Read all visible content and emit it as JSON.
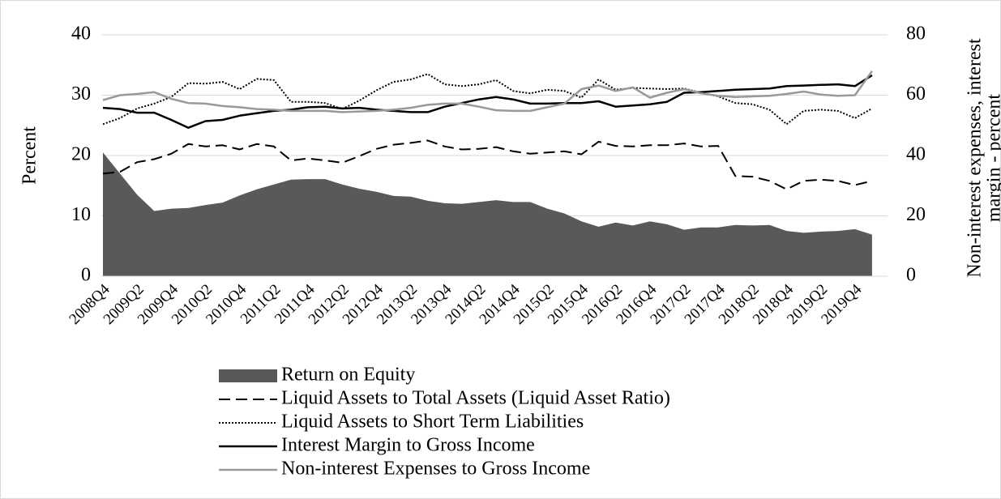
{
  "chart_data": {
    "type": "line",
    "y_label": "Percent",
    "y2_label": [
      "Non-interest expenses, interest",
      "margin - percent"
    ],
    "categories": [
      "2008Q4",
      null,
      "2009Q2",
      null,
      "2009Q4",
      null,
      "2010Q2",
      null,
      "2010Q4",
      null,
      "2011Q2",
      null,
      "2011Q4",
      null,
      "2012Q2",
      null,
      "2012Q4",
      null,
      "2013Q2",
      null,
      "2013Q4",
      null,
      "2014Q2",
      null,
      "2014Q4",
      null,
      "2015Q2",
      null,
      "2015Q4",
      null,
      "2016Q2",
      null,
      "2016Q4",
      null,
      "2017Q2",
      null,
      "2017Q4",
      null,
      "2018Q2",
      null,
      "2018Q4",
      null,
      "2019Q2",
      null,
      "2019Q4",
      null
    ],
    "ylim": [
      0,
      40
    ],
    "yticks": [
      0,
      10,
      20,
      30,
      40
    ],
    "y2lim": [
      0,
      80
    ],
    "y2ticks": [
      0,
      20,
      40,
      60,
      80
    ],
    "grid": true,
    "series": [
      {
        "name": "Return on Equity",
        "color": "#595959",
        "style": "area",
        "values": [
          20.5,
          17,
          13.5,
          10.8,
          11.2,
          11.3,
          11.8,
          12.2,
          13.4,
          14.4,
          15.2,
          16,
          16.1,
          16.1,
          15.2,
          14.5,
          14,
          13.3,
          13.2,
          12.5,
          12.1,
          12,
          12.3,
          12.6,
          12.3,
          12.3,
          11.2,
          10.4,
          9.1,
          8.2,
          8.9,
          8.4,
          9.1,
          8.6,
          7.7,
          8.1,
          8.1,
          8.5,
          8.4,
          8.5,
          7.5,
          7.2,
          7.4,
          7.5,
          7.8,
          6.9
        ]
      },
      {
        "name": "Liquid Assets to Total Assets (Liquid Asset Ratio)",
        "color": "#000000",
        "style": "dashed",
        "values": [
          17,
          17.3,
          18.9,
          19.4,
          20.3,
          21.9,
          21.5,
          21.7,
          21,
          21.9,
          21.5,
          19.2,
          19.5,
          19.2,
          18.8,
          19.9,
          21.1,
          21.8,
          22.1,
          22.5,
          21.5,
          21,
          21.1,
          21.4,
          20.7,
          20.3,
          20.5,
          20.7,
          20.2,
          22.3,
          21.6,
          21.5,
          21.7,
          21.7,
          22,
          21.5,
          21.6,
          16.6,
          16.5,
          15.8,
          14.4,
          15.8,
          16,
          15.8,
          15.1,
          15.8
        ]
      },
      {
        "name": "Liquid Assets to Short Term Liabilities",
        "color": "#000000",
        "style": "dotted",
        "values": [
          25.2,
          26.2,
          27.8,
          28.6,
          29.7,
          32,
          31.9,
          32.2,
          31,
          32.7,
          32.5,
          28.9,
          28.9,
          28.7,
          27.7,
          29.1,
          30.8,
          32.2,
          32.6,
          33.5,
          31.8,
          31.5,
          31.8,
          32.5,
          30.7,
          30.3,
          30.9,
          30.7,
          29.6,
          32.6,
          30.9,
          31.2,
          31.1,
          31,
          31.1,
          30.4,
          29.8,
          28.7,
          28.5,
          27.6,
          25.2,
          27.4,
          27.6,
          27.4,
          26.2,
          27.8
        ]
      },
      {
        "name": "Interest Margin to Gross Income",
        "color": "#000000",
        "style": "solid",
        "axis": "y2",
        "values": [
          55.8,
          55.4,
          54.2,
          54.2,
          51.8,
          49.2,
          51.4,
          51.8,
          53.2,
          54,
          54.8,
          55.2,
          56,
          56.2,
          55.6,
          55.8,
          55.2,
          54.8,
          54.4,
          54.4,
          56.2,
          57.4,
          58.6,
          59.4,
          58.6,
          57.2,
          57.2,
          57.4,
          57.4,
          58,
          56.2,
          56.6,
          57,
          57.8,
          60.8,
          61,
          61.4,
          61.8,
          62,
          62.2,
          63,
          63.2,
          63.4,
          63.6,
          63,
          66.6
        ]
      },
      {
        "name": "Non-interest Expenses to Gross Income",
        "color": "#999999",
        "style": "solid",
        "axis": "y2",
        "values": [
          58.4,
          60,
          60.4,
          61,
          58.8,
          57.4,
          57.2,
          56.4,
          56,
          55.4,
          55.2,
          54.8,
          54.8,
          54.8,
          54.4,
          54.6,
          54.8,
          55.2,
          55.8,
          56.8,
          57.2,
          57.2,
          56.2,
          55,
          54.8,
          54.8,
          56,
          57.2,
          62,
          63.2,
          61.4,
          62.6,
          59.2,
          60.8,
          62,
          60.6,
          59.8,
          59.4,
          59.6,
          59.8,
          60.4,
          61.2,
          60.2,
          59.8,
          60,
          68
        ]
      }
    ]
  }
}
